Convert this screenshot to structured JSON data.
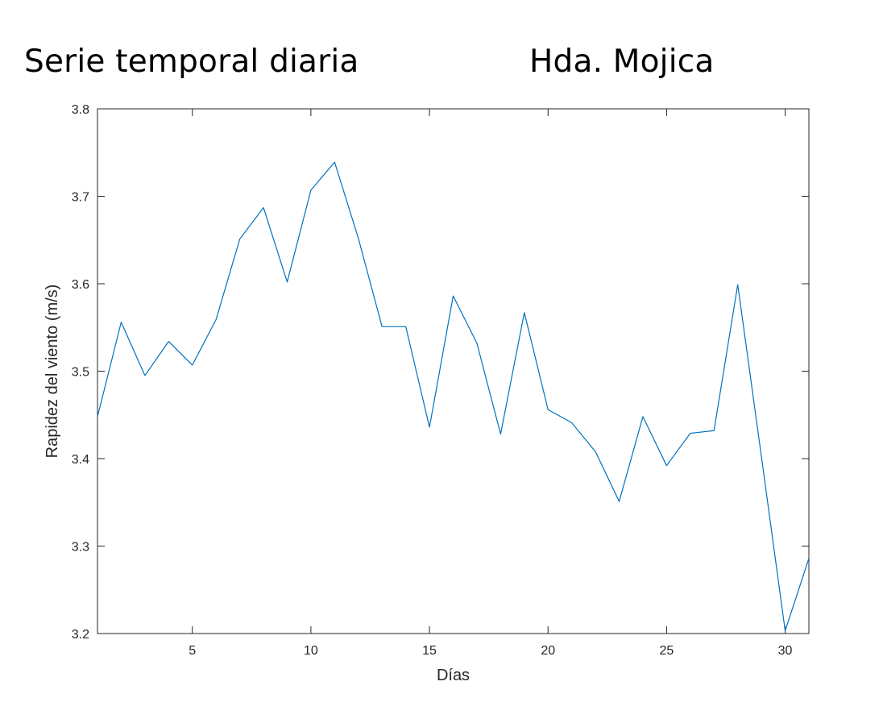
{
  "header": {
    "title": "Serie temporal diaria",
    "station": "Hda. Mojica"
  },
  "chart_data": {
    "type": "line",
    "xlabel": "Días",
    "ylabel": "Rapidez del viento (m/s)",
    "xlim": [
      1,
      31
    ],
    "ylim": [
      3.2,
      3.8
    ],
    "xticks": [
      5,
      10,
      15,
      20,
      25,
      30
    ],
    "yticks": [
      3.2,
      3.3,
      3.4,
      3.5,
      3.6,
      3.7,
      3.8
    ],
    "ytick_labels": [
      "3.2",
      "3.3",
      "3.4",
      "3.5",
      "3.6",
      "3.7",
      "3.8"
    ],
    "grid": false,
    "line_color": "#0072BD",
    "x": [
      1,
      2,
      3,
      4,
      5,
      6,
      7,
      8,
      9,
      10,
      11,
      12,
      13,
      14,
      15,
      16,
      17,
      18,
      19,
      20,
      21,
      22,
      23,
      24,
      25,
      26,
      27,
      28,
      29,
      30,
      31
    ],
    "series": [
      {
        "values": [
          3.448,
          3.556,
          3.495,
          3.534,
          3.507,
          3.559,
          3.651,
          3.687,
          3.602,
          3.707,
          3.739,
          3.652,
          3.551,
          3.551,
          3.436,
          3.586,
          3.532,
          3.428,
          3.567,
          3.456,
          3.441,
          3.408,
          3.351,
          3.448,
          3.392,
          3.429,
          3.432,
          3.599,
          3.402,
          3.203,
          3.286
        ]
      }
    ]
  }
}
